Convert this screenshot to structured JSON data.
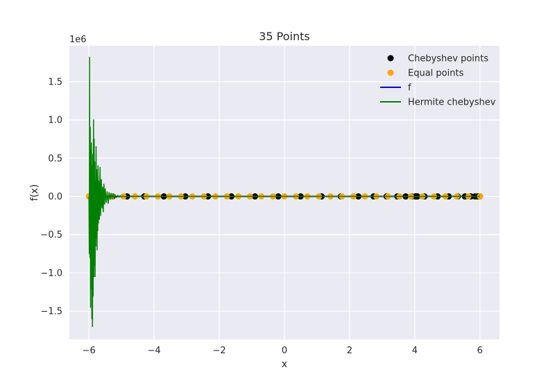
{
  "chart_data": {
    "type": "line",
    "title": "35 Points",
    "xlabel": "x",
    "ylabel": "f(x)",
    "y_offset_text": "1e6",
    "xlim": [
      -6.6,
      6.6
    ],
    "ylim": [
      -1.87,
      1.97
    ],
    "x_ticks": [
      -6,
      -4,
      -2,
      0,
      2,
      4,
      6
    ],
    "x_tick_labels": [
      "−6",
      "−4",
      "−2",
      "0",
      "2",
      "4",
      "6"
    ],
    "y_ticks": [
      -1.5,
      -1.0,
      -0.5,
      0.0,
      0.5,
      1.0,
      1.5
    ],
    "y_tick_labels": [
      "−1.5",
      "−1.0",
      "−0.5",
      "0.0",
      "0.5",
      "1.0",
      "1.5"
    ],
    "grid": true,
    "legend_position": "top-right",
    "legend": [
      {
        "label": "Chebyshev points",
        "marker": "dot",
        "color": "#000000"
      },
      {
        "label": "Equal points",
        "marker": "dot",
        "color": "#ffa500"
      },
      {
        "label": "f",
        "marker": "line",
        "color": "#0000ff"
      },
      {
        "label": "Hermite chebyshev",
        "marker": "line",
        "color": "#008000"
      }
    ],
    "series": [
      {
        "name": "Chebyshev points",
        "kind": "scatter",
        "color": "#000000",
        "x": [
          -5.976,
          -5.855,
          -5.618,
          -5.273,
          -4.83,
          -4.301,
          -3.7,
          -3.043,
          -2.347,
          -1.628,
          -0.904,
          -0.19,
          0.496,
          1.14,
          1.733,
          2.268,
          2.737,
          3.136,
          3.464,
          3.72,
          3.906,
          4.024,
          4.078,
          4.076,
          4.024,
          4.3,
          4.7,
          5.04,
          5.32,
          5.54,
          5.72,
          5.85,
          5.93,
          5.98,
          6.0
        ],
        "y": [
          0,
          0,
          0,
          0,
          0,
          0,
          0,
          0,
          0,
          0,
          0,
          0,
          0,
          0,
          0,
          0,
          0,
          0,
          0,
          0,
          0,
          0,
          0,
          0,
          0,
          0,
          0,
          0,
          0,
          0,
          0,
          0,
          0,
          0,
          0
        ]
      },
      {
        "name": "Equal points",
        "kind": "scatter",
        "color": "#ffa500",
        "x": [
          -6.0,
          -5.647,
          -5.294,
          -4.941,
          -4.588,
          -4.235,
          -3.882,
          -3.529,
          -3.176,
          -2.824,
          -2.471,
          -2.118,
          -1.765,
          -1.412,
          -1.059,
          -0.706,
          -0.353,
          0.0,
          0.353,
          0.706,
          1.059,
          1.412,
          1.765,
          2.118,
          2.471,
          2.824,
          3.176,
          3.529,
          3.882,
          4.235,
          4.588,
          4.941,
          5.294,
          5.647,
          6.0
        ],
        "y": [
          0,
          0,
          0,
          0,
          0,
          0,
          0,
          0,
          0,
          0,
          0,
          0,
          0,
          0,
          0,
          0,
          0,
          0,
          0,
          0,
          0,
          0,
          0,
          0,
          0,
          0,
          0,
          0,
          0,
          0,
          0,
          0,
          0,
          0,
          0
        ]
      },
      {
        "name": "f",
        "kind": "line",
        "color": "#0000ff",
        "x": [
          -6.0,
          6.0
        ],
        "y": [
          0.0,
          0.0
        ]
      },
      {
        "name": "Hermite chebyshev",
        "kind": "line",
        "color": "#008000",
        "x": [
          -6.0,
          -5.99,
          -5.98,
          -5.97,
          -5.96,
          -5.95,
          -5.94,
          -5.93,
          -5.92,
          -5.91,
          -5.9,
          -5.89,
          -5.88,
          -5.87,
          -5.86,
          -5.85,
          -5.84,
          -5.83,
          -5.82,
          -5.81,
          -5.8,
          -5.79,
          -5.78,
          -5.77,
          -5.76,
          -5.75,
          -5.74,
          -5.73,
          -5.72,
          -5.71,
          -5.7,
          -5.68,
          -5.66,
          -5.64,
          -5.62,
          -5.6,
          -5.58,
          -5.56,
          -5.54,
          -5.52,
          -5.5,
          -5.47,
          -5.44,
          -5.41,
          -5.38,
          -5.35,
          -5.32,
          -5.29,
          -5.26,
          -5.23,
          -5.2,
          -5.16,
          -5.12,
          -5.08,
          -5.04,
          -5.0,
          -4.95,
          -4.9,
          -4.85,
          -4.8,
          -4.7,
          -4.5,
          -4.0,
          0.0,
          6.0
        ],
        "y": [
          0.0,
          -0.75,
          1.82,
          -0.8,
          0.9,
          -1.45,
          0.6,
          -1.2,
          0.7,
          -1.6,
          0.4,
          -1.7,
          0.55,
          -1.3,
          1.0,
          -1.05,
          0.75,
          -0.9,
          0.45,
          -1.05,
          0.2,
          -0.65,
          0.65,
          -0.55,
          0.35,
          -0.7,
          0.25,
          -0.45,
          0.4,
          -0.35,
          0.2,
          -0.3,
          0.38,
          -0.25,
          0.22,
          -0.15,
          0.12,
          -0.2,
          0.16,
          -0.1,
          0.1,
          -0.08,
          0.06,
          -0.09,
          0.05,
          -0.04,
          0.04,
          -0.03,
          0.03,
          -0.02,
          0.02,
          -0.015,
          0.012,
          -0.01,
          0.008,
          -0.006,
          0.004,
          -0.003,
          0.002,
          -0.001,
          0.0,
          0.0,
          0.0,
          0.0,
          0.0
        ]
      }
    ]
  }
}
